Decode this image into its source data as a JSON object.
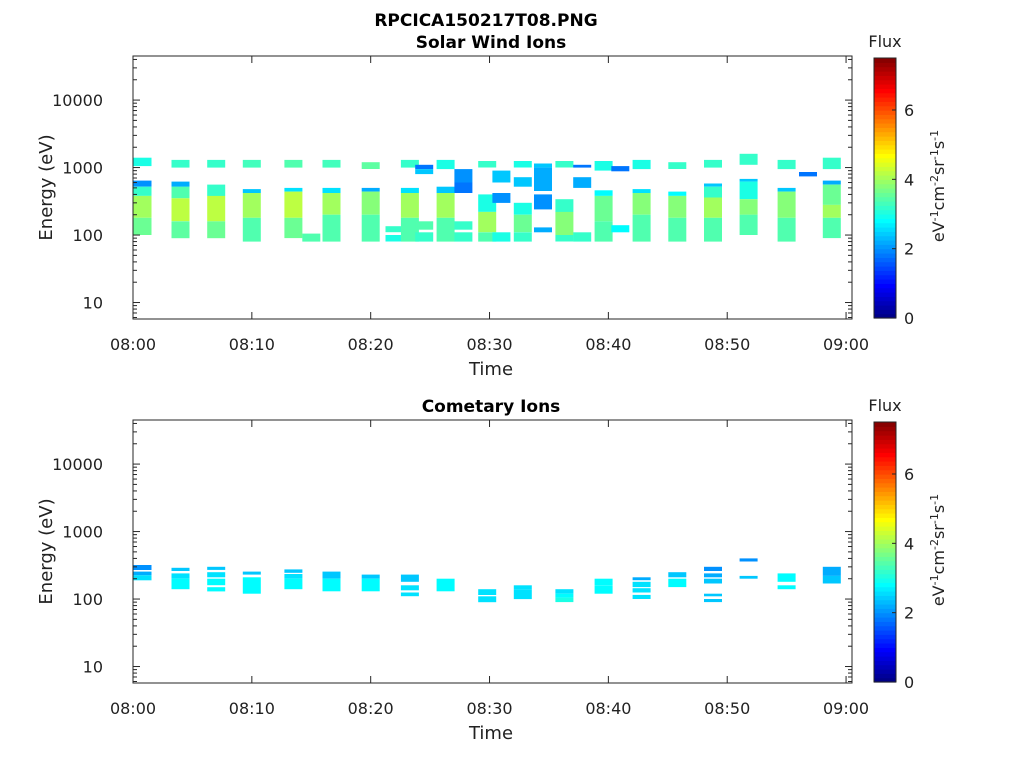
{
  "figure_title": "RPCICA150217T08.PNG",
  "colorbar": {
    "title": "Flux",
    "label_html": "eV<tspan baseline-shift='super' font-size='11'>-1</tspan>cm<tspan baseline-shift='super' font-size='11'>-2</tspan>sr<tspan baseline-shift='super' font-size='11'>-1</tspan>s<tspan baseline-shift='super' font-size='11'>-1</tspan>",
    "range": [
      0,
      7.5
    ],
    "ticks": [
      0,
      2,
      4,
      6
    ],
    "colormap": "jet"
  },
  "chart_data": [
    {
      "type": "heatmap",
      "title": "Solar Wind Ions",
      "xlabel": "Time",
      "ylabel": "Energy (eV)",
      "x_ticks": [
        "08:00",
        "08:10",
        "08:20",
        "08:30",
        "08:40",
        "08:50",
        "09:00"
      ],
      "x_range_minutes": [
        0,
        60.5
      ],
      "y_scale": "log",
      "y_ticks": [
        10,
        100,
        1000,
        10000
      ],
      "y_range": [
        5.7,
        45000
      ],
      "scans": [
        {
          "t": 0.8,
          "bands": [
            [
              1050,
              1400,
              3.0
            ],
            [
              640,
              1000,
              null
            ],
            [
              520,
              640,
              2.0
            ],
            [
              380,
              520,
              3.2
            ],
            [
              180,
              380,
              4.0
            ],
            [
              100,
              180,
              3.6
            ]
          ]
        },
        {
          "t": 4.0,
          "bands": [
            [
              1000,
              1300,
              3.2
            ],
            [
              520,
              620,
              2.2
            ],
            [
              350,
              520,
              3.4
            ],
            [
              160,
              350,
              4.2
            ],
            [
              90,
              160,
              3.5
            ]
          ]
        },
        {
          "t": 7.0,
          "bands": [
            [
              1000,
              1300,
              3.2
            ],
            [
              380,
              560,
              3.2
            ],
            [
              160,
              380,
              4.2
            ],
            [
              90,
              160,
              3.6
            ]
          ]
        },
        {
          "t": 10.0,
          "bands": [
            [
              1000,
              1300,
              3.3
            ],
            [
              420,
              480,
              2.4
            ],
            [
              180,
              420,
              4.0
            ],
            [
              80,
              180,
              3.4
            ]
          ]
        },
        {
          "t": 13.5,
          "bands": [
            [
              1000,
              1300,
              3.4
            ],
            [
              440,
              500,
              2.6
            ],
            [
              180,
              440,
              4.2
            ],
            [
              90,
              180,
              3.6
            ]
          ]
        },
        {
          "t": 15.0,
          "bands": [
            [
              80,
              105,
              3.4
            ]
          ]
        },
        {
          "t": 16.7,
          "bands": [
            [
              1000,
              1300,
              3.3
            ],
            [
              420,
              500,
              2.6
            ],
            [
              200,
              420,
              4.0
            ],
            [
              80,
              200,
              3.4
            ]
          ]
        },
        {
          "t": 20.0,
          "bands": [
            [
              950,
              1200,
              3.5
            ],
            [
              440,
              500,
              2.2
            ],
            [
              200,
              440,
              3.8
            ],
            [
              80,
              200,
              3.4
            ]
          ]
        },
        {
          "t": 22.0,
          "bands": [
            [
              110,
              135,
              3.2
            ],
            [
              80,
              100,
              3.0
            ]
          ]
        },
        {
          "t": 23.3,
          "bands": [
            [
              1000,
              1300,
              3.2
            ],
            [
              420,
              500,
              2.6
            ],
            [
              180,
              420,
              4.0
            ],
            [
              80,
              180,
              3.4
            ]
          ]
        },
        {
          "t": 24.5,
          "bands": [
            [
              950,
              1100,
              1.8
            ],
            [
              800,
              950,
              2.4
            ],
            [
              120,
              160,
              3.4
            ],
            [
              80,
              110,
              3.2
            ]
          ]
        },
        {
          "t": 26.3,
          "bands": [
            [
              950,
              1300,
              3.0
            ],
            [
              420,
              520,
              2.4
            ],
            [
              180,
              420,
              4.0
            ],
            [
              80,
              180,
              3.4
            ]
          ]
        },
        {
          "t": 27.8,
          "bands": [
            [
              600,
              950,
              2.0
            ],
            [
              420,
              600,
              1.8
            ],
            [
              120,
              160,
              3.2
            ],
            [
              80,
              110,
              3.2
            ]
          ]
        },
        {
          "t": 29.8,
          "bands": [
            [
              1000,
              1250,
              3.2
            ],
            [
              220,
              400,
              3.0
            ],
            [
              110,
              220,
              4.0
            ],
            [
              80,
              110,
              3.4
            ]
          ]
        },
        {
          "t": 31.0,
          "bands": [
            [
              600,
              900,
              2.4
            ],
            [
              300,
              420,
              2.0
            ],
            [
              80,
              110,
              3.0
            ]
          ]
        },
        {
          "t": 32.8,
          "bands": [
            [
              1000,
              1250,
              3.0
            ],
            [
              520,
              720,
              2.4
            ],
            [
              200,
              300,
              3.0
            ],
            [
              110,
              200,
              3.6
            ],
            [
              80,
              110,
              3.2
            ]
          ]
        },
        {
          "t": 34.5,
          "bands": [
            [
              1000,
              1150,
              2.4
            ],
            [
              450,
              1000,
              2.2
            ],
            [
              240,
              400,
              2.0
            ],
            [
              110,
              130,
              2.2
            ]
          ]
        },
        {
          "t": 36.3,
          "bands": [
            [
              1000,
              1250,
              3.2
            ],
            [
              220,
              340,
              3.2
            ],
            [
              100,
              220,
              3.8
            ],
            [
              80,
              100,
              3.2
            ]
          ]
        },
        {
          "t": 37.8,
          "bands": [
            [
              1000,
              1100,
              1.8
            ],
            [
              500,
              720,
              2.2
            ],
            [
              80,
              110,
              3.2
            ]
          ]
        },
        {
          "t": 39.6,
          "bands": [
            [
              900,
              1250,
              3.0
            ],
            [
              380,
              460,
              2.8
            ],
            [
              160,
              380,
              3.6
            ],
            [
              80,
              160,
              3.4
            ]
          ]
        },
        {
          "t": 41.0,
          "bands": [
            [
              880,
              1050,
              1.8
            ],
            [
              110,
              140,
              2.8
            ]
          ]
        },
        {
          "t": 42.8,
          "bands": [
            [
              950,
              1300,
              3.0
            ],
            [
              420,
              480,
              2.6
            ],
            [
              200,
              420,
              3.8
            ],
            [
              80,
              200,
              3.4
            ]
          ]
        },
        {
          "t": 45.8,
          "bands": [
            [
              950,
              1200,
              3.2
            ],
            [
              380,
              440,
              2.8
            ],
            [
              180,
              380,
              3.8
            ],
            [
              80,
              180,
              3.4
            ]
          ]
        },
        {
          "t": 48.8,
          "bands": [
            [
              1000,
              1300,
              3.2
            ],
            [
              520,
              580,
              2.4
            ],
            [
              360,
              520,
              3.2
            ],
            [
              180,
              360,
              4.0
            ],
            [
              80,
              180,
              3.4
            ]
          ]
        },
        {
          "t": 51.8,
          "bands": [
            [
              1100,
              1600,
              3.2
            ],
            [
              620,
              680,
              2.4
            ],
            [
              340,
              620,
              3.0
            ],
            [
              200,
              340,
              3.8
            ],
            [
              100,
              200,
              3.4
            ]
          ]
        },
        {
          "t": 55.0,
          "bands": [
            [
              950,
              1300,
              3.2
            ],
            [
              440,
              500,
              2.4
            ],
            [
              180,
              440,
              3.8
            ],
            [
              80,
              180,
              3.4
            ]
          ]
        },
        {
          "t": 56.8,
          "bands": [
            [
              740,
              860,
              1.8
            ]
          ]
        },
        {
          "t": 58.8,
          "bands": [
            [
              950,
              1400,
              3.2
            ],
            [
              560,
              640,
              2.2
            ],
            [
              280,
              560,
              3.6
            ],
            [
              180,
              280,
              4.0
            ],
            [
              90,
              180,
              3.4
            ]
          ]
        }
      ]
    },
    {
      "type": "heatmap",
      "title": "Cometary Ions",
      "xlabel": "Time",
      "ylabel": "Energy (eV)",
      "x_ticks": [
        "08:00",
        "08:10",
        "08:20",
        "08:30",
        "08:40",
        "08:50",
        "09:00"
      ],
      "x_range_minutes": [
        0,
        60.5
      ],
      "y_scale": "log",
      "y_ticks": [
        10,
        100,
        1000,
        10000
      ],
      "y_range": [
        5.7,
        45000
      ],
      "scans": [
        {
          "t": 0.8,
          "bands": [
            [
              270,
              320,
              2.0
            ],
            [
              225,
              255,
              2.2
            ],
            [
              190,
              225,
              2.6
            ]
          ]
        },
        {
          "t": 4.0,
          "bands": [
            [
              260,
              290,
              2.4
            ],
            [
              200,
              240,
              2.6
            ],
            [
              140,
              200,
              2.8
            ]
          ]
        },
        {
          "t": 7.0,
          "bands": [
            [
              270,
              300,
              2.4
            ],
            [
              210,
              250,
              2.6
            ],
            [
              160,
              200,
              2.8
            ],
            [
              130,
              150,
              2.8
            ]
          ]
        },
        {
          "t": 10.0,
          "bands": [
            [
              230,
              255,
              2.4
            ],
            [
              120,
              210,
              2.8
            ]
          ]
        },
        {
          "t": 13.5,
          "bands": [
            [
              245,
              275,
              2.4
            ],
            [
              200,
              235,
              2.6
            ],
            [
              140,
              200,
              2.8
            ]
          ]
        },
        {
          "t": 16.7,
          "bands": [
            [
              200,
              255,
              2.4
            ],
            [
              130,
              200,
              2.8
            ]
          ]
        },
        {
          "t": 20.0,
          "bands": [
            [
              200,
              230,
              2.4
            ],
            [
              130,
              200,
              2.8
            ]
          ]
        },
        {
          "t": 23.3,
          "bands": [
            [
              180,
              230,
              2.4
            ],
            [
              135,
              160,
              2.6
            ],
            [
              110,
              125,
              2.6
            ]
          ]
        },
        {
          "t": 26.3,
          "bands": [
            [
              130,
              200,
              2.8
            ]
          ]
        },
        {
          "t": 29.8,
          "bands": [
            [
              115,
              140,
              2.6
            ],
            [
              90,
              110,
              2.6
            ]
          ]
        },
        {
          "t": 32.8,
          "bands": [
            [
              140,
              160,
              2.6
            ],
            [
              100,
              140,
              2.6
            ]
          ]
        },
        {
          "t": 36.3,
          "bands": [
            [
              120,
              140,
              2.6
            ],
            [
              105,
              120,
              2.8
            ],
            [
              90,
              105,
              3.0
            ]
          ]
        },
        {
          "t": 39.6,
          "bands": [
            [
              160,
              200,
              2.8
            ],
            [
              120,
              160,
              2.8
            ]
          ]
        },
        {
          "t": 42.8,
          "bands": [
            [
              190,
              210,
              2.2
            ],
            [
              150,
              180,
              2.6
            ],
            [
              125,
              145,
              2.6
            ],
            [
              100,
              115,
              2.6
            ]
          ]
        },
        {
          "t": 45.8,
          "bands": [
            [
              210,
              250,
              2.4
            ],
            [
              150,
              200,
              2.8
            ]
          ]
        },
        {
          "t": 48.8,
          "bands": [
            [
              260,
              300,
              2.0
            ],
            [
              210,
              240,
              2.2
            ],
            [
              170,
              200,
              2.4
            ],
            [
              110,
              120,
              2.4
            ],
            [
              90,
              100,
              2.4
            ]
          ]
        },
        {
          "t": 51.8,
          "bands": [
            [
              360,
              400,
              2.0
            ],
            [
              200,
              220,
              2.4
            ]
          ]
        },
        {
          "t": 55.0,
          "bands": [
            [
              180,
              240,
              2.8
            ],
            [
              140,
              160,
              2.8
            ]
          ]
        },
        {
          "t": 58.8,
          "bands": [
            [
              220,
              300,
              2.2
            ],
            [
              170,
              220,
              2.4
            ]
          ]
        }
      ]
    }
  ]
}
